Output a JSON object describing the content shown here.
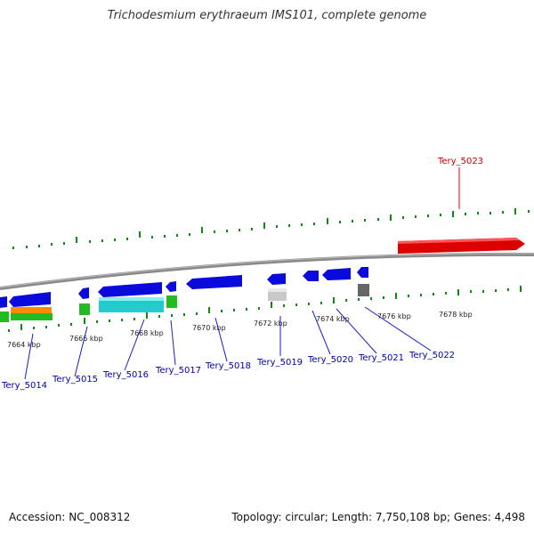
{
  "title": "Trichodesmium erythraeum IMS101, complete genome",
  "footer": {
    "accession": "Accession: NC_008312",
    "summary": "Topology: circular; Length: 7,750,108 bp; Genes: 4,498"
  },
  "scale_labels": [
    "7664 kbp",
    "7666 kbp",
    "7668 kbp",
    "7670 kbp",
    "7672 kbp",
    "7674 kbp",
    "7676 kbp",
    "7678 kbp"
  ],
  "gene_labels": [
    "Tery_5014",
    "Tery_5015",
    "Tery_5016",
    "Tery_5017",
    "Tery_5018",
    "Tery_5019",
    "Tery_5020",
    "Tery_5021",
    "Tery_5022",
    "Tery_5023"
  ],
  "colors": {
    "forward": "#0a0adc",
    "highlight": "#dd0000",
    "cds_green": "#22bb22",
    "cds_orange": "#ff8c00",
    "cds_cyan": "#22cccc",
    "cds_gray": "#c8c8c8",
    "cds_dark_gray": "#666666",
    "ticks": "#118811",
    "backbone": "#888888",
    "label_line": "#1a1acc"
  }
}
